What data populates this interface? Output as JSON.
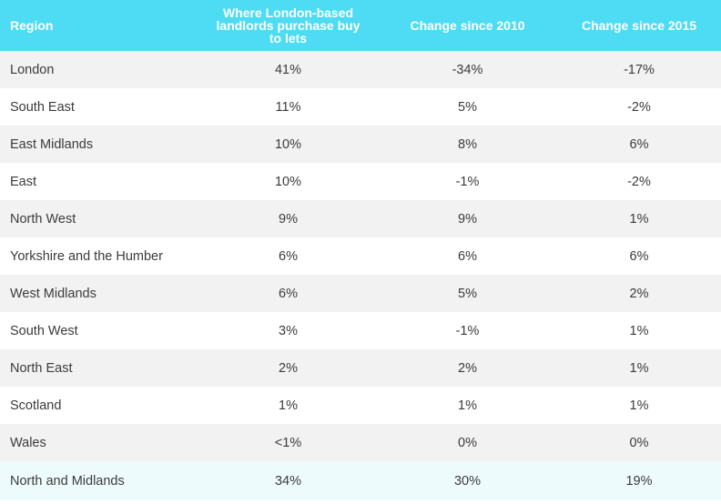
{
  "chart_data": {
    "type": "table",
    "columns": [
      "Region",
      "Where London-based landlords purchase buy to lets",
      "Change since 2010",
      "Change since 2015"
    ],
    "rows": [
      {
        "region": "London",
        "share": "41%",
        "since_2010": "-34%",
        "since_2015": "-17%"
      },
      {
        "region": "South East",
        "share": "11%",
        "since_2010": "5%",
        "since_2015": "-2%"
      },
      {
        "region": "East Midlands",
        "share": "10%",
        "since_2010": "8%",
        "since_2015": "6%"
      },
      {
        "region": "East",
        "share": "10%",
        "since_2010": "-1%",
        "since_2015": "-2%"
      },
      {
        "region": "North West",
        "share": "9%",
        "since_2010": "9%",
        "since_2015": "1%"
      },
      {
        "region": "Yorkshire and the Humber",
        "share": "6%",
        "since_2010": "6%",
        "since_2015": "6%"
      },
      {
        "region": "West Midlands",
        "share": "6%",
        "since_2010": "5%",
        "since_2015": "2%"
      },
      {
        "region": "South West",
        "share": "3%",
        "since_2010": "-1%",
        "since_2015": "1%"
      },
      {
        "region": "North East",
        "share": "2%",
        "since_2010": "2%",
        "since_2015": "1%"
      },
      {
        "region": "Scotland",
        "share": "1%",
        "since_2010": "1%",
        "since_2015": "1%"
      },
      {
        "region": "Wales",
        "share": "<1%",
        "since_2010": "0%",
        "since_2015": "0%"
      },
      {
        "region": "North and Midlands",
        "share": "34%",
        "since_2010": "30%",
        "since_2015": "19%"
      }
    ],
    "colors": {
      "header_bg": "#4ddcf3",
      "header_text": "#ffffff",
      "stripe": "#f2f2f2",
      "total_row_bg": "#eefbfd"
    }
  }
}
